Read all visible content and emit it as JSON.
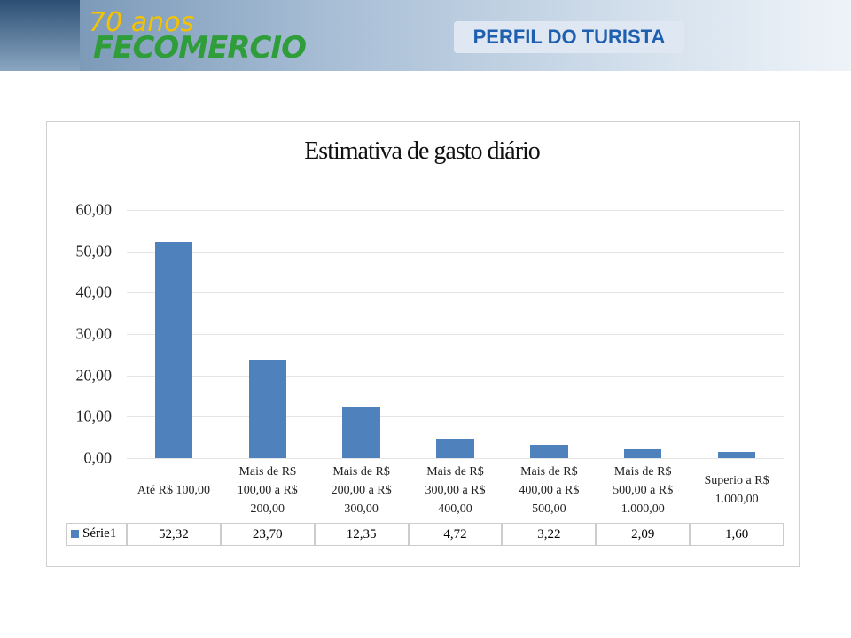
{
  "header": {
    "logo_year": "70 anos",
    "logo_name": "FECOMERCIO",
    "title": "PERFIL DO TURISTA"
  },
  "chart_data": {
    "type": "bar",
    "title": "Estimativa de gasto diário",
    "categories": [
      "Até R$ 100,00",
      "Mais de R$ 100,00 a R$ 200,00",
      "Mais de R$ 200,00 a R$ 300,00",
      "Mais de R$ 300,00 a R$ 400,00",
      "Mais de R$ 400,00 a R$ 500,00",
      "Mais de R$ 500,00 a R$ 1.000,00",
      "Superio a R$ 1.000,00"
    ],
    "series": [
      {
        "name": "Série1",
        "color": "#4f81bd",
        "values": [
          52.32,
          23.7,
          12.35,
          4.72,
          3.22,
          2.09,
          1.6
        ],
        "value_labels": [
          "52,32",
          "23,70",
          "12,35",
          "4,72",
          "3,22",
          "2,09",
          "1,60"
        ]
      }
    ],
    "ylim": [
      0,
      60
    ],
    "yticks": [
      {
        "value": 0,
        "label": "0,00"
      },
      {
        "value": 10,
        "label": "10,00"
      },
      {
        "value": 20,
        "label": "20,00"
      },
      {
        "value": 30,
        "label": "30,00"
      },
      {
        "value": 40,
        "label": "40,00"
      },
      {
        "value": 50,
        "label": "50,00"
      },
      {
        "value": 60,
        "label": "60,00"
      }
    ],
    "grid": true
  }
}
